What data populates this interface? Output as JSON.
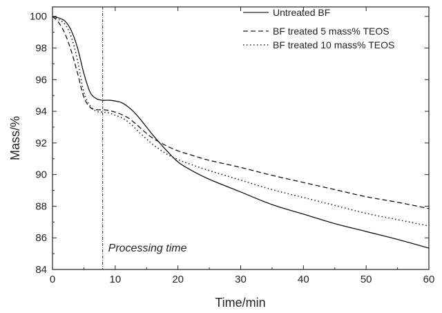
{
  "chart_data": {
    "type": "line",
    "xlabel": "Time/min",
    "ylabel": "Mass/%",
    "xlim": [
      0,
      60
    ],
    "ylim": [
      84,
      100.6
    ],
    "xticks": [
      0,
      10,
      20,
      30,
      40,
      50,
      60
    ],
    "yticks": [
      84,
      86,
      88,
      90,
      92,
      94,
      96,
      98,
      100
    ],
    "grid": false,
    "legend_position": "top-right",
    "annotation": {
      "text": "Processing time",
      "x": 8
    },
    "series": [
      {
        "name": "Untreated BF",
        "style": "solid",
        "x": [
          0,
          1,
          2,
          3,
          4,
          5,
          6,
          7,
          8,
          9,
          10,
          11,
          12,
          13,
          14,
          15,
          16,
          18,
          20,
          22,
          25,
          30,
          35,
          40,
          45,
          50,
          55,
          60
        ],
        "y": [
          100,
          99.9,
          99.7,
          99.1,
          98.0,
          96.4,
          95.2,
          94.8,
          94.7,
          94.7,
          94.65,
          94.55,
          94.3,
          93.95,
          93.5,
          93.0,
          92.5,
          91.6,
          90.8,
          90.3,
          89.7,
          88.9,
          88.1,
          87.5,
          86.9,
          86.4,
          85.9,
          85.35
        ]
      },
      {
        "name": "BF treated 5 mass% TEOS",
        "style": "dashed",
        "x": [
          0,
          1,
          2,
          3,
          4,
          5,
          6,
          7,
          8,
          9,
          10,
          11,
          12,
          13,
          14,
          15,
          16,
          18,
          20,
          22,
          25,
          30,
          35,
          40,
          45,
          50,
          55,
          60
        ],
        "y": [
          100,
          99.6,
          98.9,
          97.8,
          96.4,
          94.9,
          94.25,
          94.1,
          94.1,
          94.05,
          93.95,
          93.8,
          93.6,
          93.3,
          92.95,
          92.6,
          92.3,
          91.85,
          91.5,
          91.25,
          90.9,
          90.45,
          89.95,
          89.5,
          89.05,
          88.6,
          88.25,
          87.85
        ]
      },
      {
        "name": "BF treated 10 mass% TEOS",
        "style": "dotted",
        "x": [
          0,
          1,
          2,
          3,
          4,
          5,
          6,
          7,
          8,
          9,
          10,
          11,
          12,
          13,
          14,
          15,
          16,
          18,
          20,
          22,
          25,
          30,
          35,
          40,
          45,
          50,
          55,
          60
        ],
        "y": [
          100,
          99.8,
          99.5,
          98.7,
          97.2,
          95.2,
          94.35,
          94.0,
          93.95,
          93.9,
          93.75,
          93.6,
          93.35,
          93.0,
          92.6,
          92.25,
          91.9,
          91.35,
          90.95,
          90.65,
          90.25,
          89.65,
          89.05,
          88.55,
          88.05,
          87.55,
          87.15,
          86.75
        ]
      }
    ]
  }
}
